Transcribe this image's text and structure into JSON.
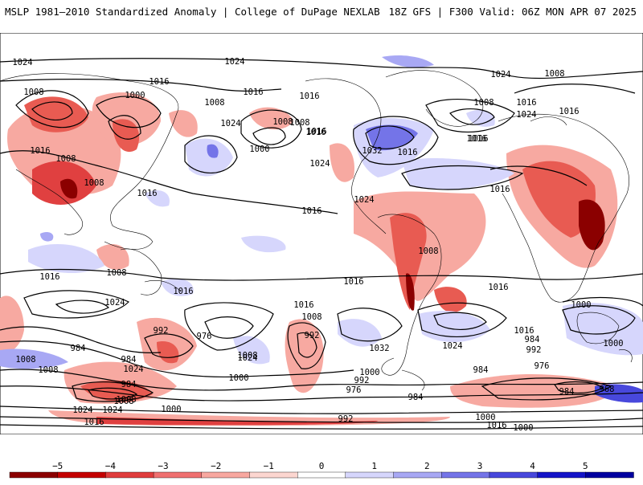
{
  "header": {
    "title_left": "MSLP 1981–2010 Standardized Anomaly | College of DuPage NEXLAB",
    "title_right": "18Z GFS | F300 Valid: 06Z MON APR 07 2025"
  },
  "map": {
    "projection": "global cylindrical",
    "isobar_labels": [
      "1024",
      "1024",
      "1016",
      "1008",
      "1008",
      "1000",
      "1008",
      "1016",
      "1016",
      "1024",
      "1016",
      "1008",
      "1008",
      "1008",
      "1016",
      "1016",
      "1000",
      "1016",
      "1024",
      "1032",
      "1016",
      "1016",
      "1016",
      "1024",
      "1008",
      "1024",
      "1008",
      "1008",
      "1016",
      "1016",
      "1024",
      "1016",
      "1016",
      "1016",
      "1016",
      "1008",
      "1016",
      "1016",
      "1024",
      "1016",
      "1008",
      "1000",
      "1008",
      "984",
      "992",
      "976",
      "984",
      "992",
      "1008",
      "1032",
      "1024",
      "1000",
      "1016",
      "984",
      "992",
      "1008",
      "1024",
      "1000",
      "984",
      "1008",
      "984",
      "1000",
      "992",
      "976",
      "1024",
      "984",
      "1024",
      "1008",
      "1000",
      "1024",
      "976",
      "984",
      "968",
      "992",
      "1000",
      "1016",
      "1000",
      "1016"
    ]
  },
  "colorbar": {
    "ticks": [
      "−5",
      "−4",
      "−3",
      "−2",
      "−1",
      "0",
      "1",
      "2",
      "3",
      "4",
      "5"
    ],
    "colors": [
      "#8b0000",
      "#c40000",
      "#e03c3c",
      "#f07070",
      "#f8a8a0",
      "#fcd6d0",
      "#ffffff",
      "#d6d6fc",
      "#a8a8f4",
      "#7474e8",
      "#4848dc",
      "#1414c8",
      "#0000a0"
    ]
  }
}
